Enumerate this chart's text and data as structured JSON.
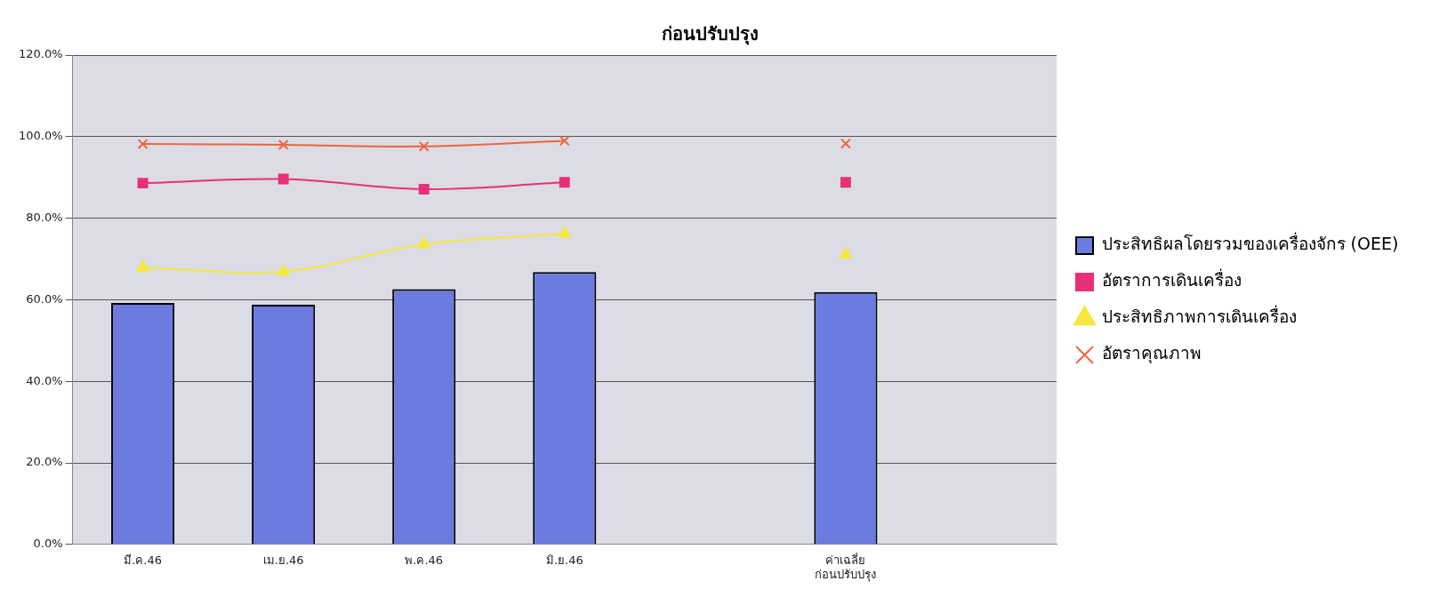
{
  "chart_data": {
    "type": "bar",
    "title": "ก่อนปรับปรุง",
    "categories": [
      "มี.ค.46",
      "เม.ย.46",
      "พ.ค.46",
      "มิ.ย.46",
      null,
      "ค่าเฉลี่ย\nก่อนปรับปรุง",
      null
    ],
    "series": [
      {
        "name": "ประสิทธิผลโดยรวมของเครื่องจักร (OEE)",
        "color": "#6b7be0",
        "values": [
          59.2,
          58.8,
          62.6,
          66.8,
          null,
          61.9,
          null
        ]
      },
      {
        "name": "อัตราการเดินเครื่อง",
        "type": "line",
        "marker": "square",
        "color": "#e8307a",
        "values": [
          88.6,
          89.6,
          87.1,
          88.8,
          null,
          88.8,
          null
        ]
      },
      {
        "name": "ประสิทธิภาพการเดินเครื่อง",
        "type": "line",
        "marker": "triangle",
        "color": "#f5e83c",
        "values": [
          67.9,
          66.9,
          73.6,
          76.2,
          null,
          71.1,
          null
        ]
      },
      {
        "name": "อัตราคุณภาพ",
        "type": "line",
        "marker": "cross",
        "color": "#f0643c",
        "values": [
          98.2,
          98.0,
          97.6,
          99.0,
          null,
          98.3,
          null
        ]
      }
    ],
    "ylim": [
      0,
      120
    ],
    "yticks": [
      {
        "value": 0,
        "label": "0.0%"
      },
      {
        "value": 20,
        "label": "20.0%"
      },
      {
        "value": 40,
        "label": "40.0%"
      },
      {
        "value": 60,
        "label": "60.0%"
      },
      {
        "value": 80,
        "label": "80.0%"
      },
      {
        "value": 100,
        "label": "100.0%"
      },
      {
        "value": 120,
        "label": "120.0%"
      }
    ],
    "grid": "y",
    "legend": "right"
  }
}
